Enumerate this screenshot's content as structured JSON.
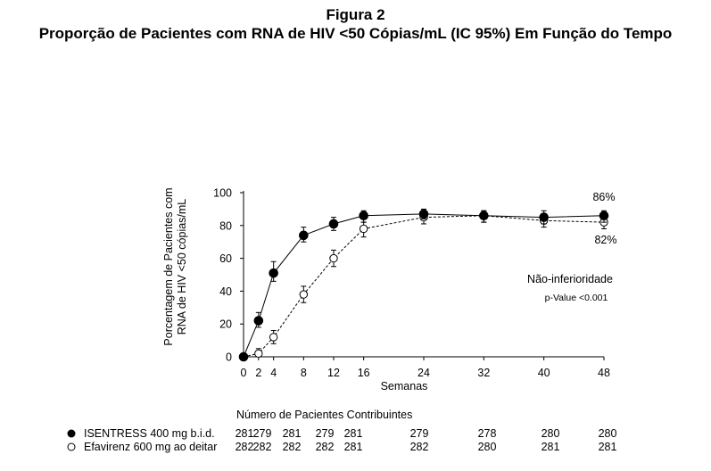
{
  "header": {
    "figure_label": "Figura 2",
    "title": "Proporção de Pacientes com RNA de HIV <50 Cópias/mL (IC 95%) Em Função do Tempo"
  },
  "chart_data": {
    "type": "line",
    "ylabel_line1": "Porcentagem de Pacientes com",
    "ylabel_line2": "RNA de HIV <50 cópias/mL",
    "xlabel": "Semanas",
    "x": [
      0,
      2,
      4,
      8,
      12,
      16,
      24,
      32,
      40,
      48
    ],
    "xlim": [
      0,
      48
    ],
    "ylim": [
      0,
      100
    ],
    "x_ticks": [
      0,
      2,
      4,
      8,
      12,
      16,
      24,
      32,
      40,
      48
    ],
    "y_ticks": [
      0,
      20,
      40,
      60,
      80,
      100
    ],
    "grid": false,
    "series": [
      {
        "name": "ISENTRESS 400 mg b.i.d.",
        "marker": "filled-circle",
        "line_style": "solid",
        "values": [
          0,
          22,
          51,
          74,
          81,
          86,
          87,
          86,
          85,
          86
        ],
        "ci_low": [
          0,
          18,
          46,
          70,
          77,
          82,
          84,
          82,
          81,
          82
        ],
        "ci_high": [
          0,
          27,
          58,
          79,
          85,
          89,
          90,
          89,
          89,
          89
        ]
      },
      {
        "name": "Efavirenz 600 mg  ao deitar",
        "marker": "open-circle",
        "line_style": "dashed",
        "values": [
          0,
          2,
          12,
          38,
          60,
          78,
          85,
          86,
          83,
          82
        ],
        "ci_low": [
          0,
          0,
          8,
          33,
          55,
          73,
          81,
          82,
          79,
          78
        ],
        "ci_high": [
          0,
          5,
          16,
          43,
          65,
          82,
          88,
          89,
          87,
          86
        ]
      }
    ],
    "annotations": {
      "isentress_end": "86%",
      "efavirenz_end": "82%",
      "noninferiority": "Não-inferioridade",
      "pvalue": "p-Value <0.001"
    },
    "patients_table": {
      "title": "Número de Pacientes Contribuintes",
      "rows": [
        {
          "label": "ISENTRESS 400 mg b.i.d.",
          "marker": "filled-circle",
          "counts": [
            "281",
            "279",
            "281",
            "279",
            "281",
            "279",
            "278",
            "280",
            "280"
          ]
        },
        {
          "label": "Efavirenz 600 mg  ao deitar",
          "marker": "open-circle",
          "counts": [
            "282",
            "282",
            "282",
            "282",
            "281",
            "282",
            "280",
            "281",
            "281"
          ]
        }
      ]
    }
  }
}
